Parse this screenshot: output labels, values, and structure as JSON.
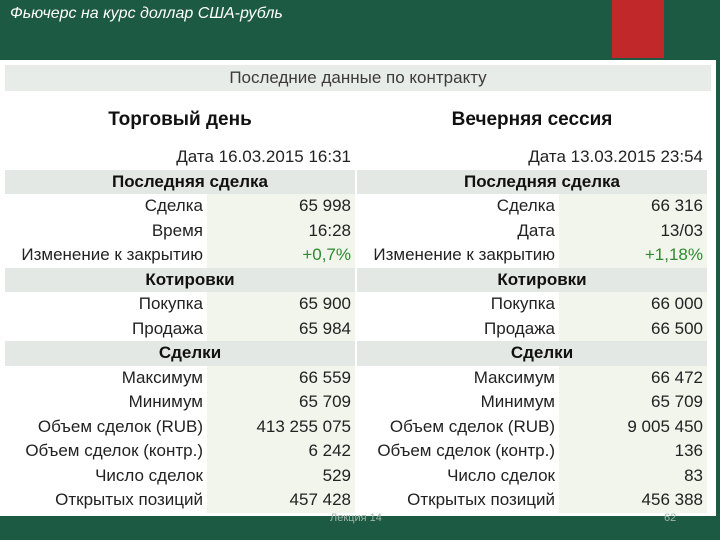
{
  "slide": {
    "title": "Фьючерс на курс доллар США-рубль",
    "footer_center": "Лекция 14",
    "footer_right": "62"
  },
  "panel": {
    "header": "Последние данные по контракту"
  },
  "sessions": [
    {
      "title": "Торговый день",
      "date_label": "Дата",
      "date_value": "16.03.2015 16:31",
      "last_trade": {
        "heading": "Последняя сделка",
        "rows": [
          {
            "label": "Сделка",
            "value": "65 998"
          },
          {
            "label": "Время",
            "value": "16:28"
          },
          {
            "label": "Изменение к закрытию",
            "value": "+0,7%"
          }
        ]
      },
      "quotes": {
        "heading": "Котировки",
        "rows": [
          {
            "label": "Покупка",
            "value": "65 900"
          },
          {
            "label": "Продажа",
            "value": "65 984"
          }
        ]
      },
      "deals": {
        "heading": "Сделки",
        "rows": [
          {
            "label": "Максимум",
            "value": "66 559"
          },
          {
            "label": "Минимум",
            "value": "65 709"
          },
          {
            "label": "Объем сделок (RUB)",
            "value": "413 255 075"
          },
          {
            "label": "Объем сделок (контр.)",
            "value": "6 242"
          },
          {
            "label": "Число сделок",
            "value": "529"
          },
          {
            "label": "Открытых позиций",
            "value": "457 428"
          }
        ]
      }
    },
    {
      "title": "Вечерняя сессия",
      "date_label": "Дата",
      "date_value": "13.03.2015 23:54",
      "last_trade": {
        "heading": "Последняя сделка",
        "rows": [
          {
            "label": "Сделка",
            "value": "66 316"
          },
          {
            "label": "Дата",
            "value": "13/03"
          },
          {
            "label": "Изменение к закрытию",
            "value": "+1,18%"
          }
        ]
      },
      "quotes": {
        "heading": "Котировки",
        "rows": [
          {
            "label": "Покупка",
            "value": "66 000"
          },
          {
            "label": "Продажа",
            "value": "66 500"
          }
        ]
      },
      "deals": {
        "heading": "Сделки",
        "rows": [
          {
            "label": "Максимум",
            "value": "66 472"
          },
          {
            "label": "Минимум",
            "value": "65 709"
          },
          {
            "label": "Объем сделок (RUB)",
            "value": "9 005 450"
          },
          {
            "label": "Объем сделок (контр.)",
            "value": "136"
          },
          {
            "label": "Число сделок",
            "value": "83"
          },
          {
            "label": "Открытых позиций",
            "value": "456 388"
          }
        ]
      }
    }
  ],
  "colors": {
    "background": "#1d5a44",
    "accent": "#c0282a",
    "positive": "#2e8b2e"
  }
}
